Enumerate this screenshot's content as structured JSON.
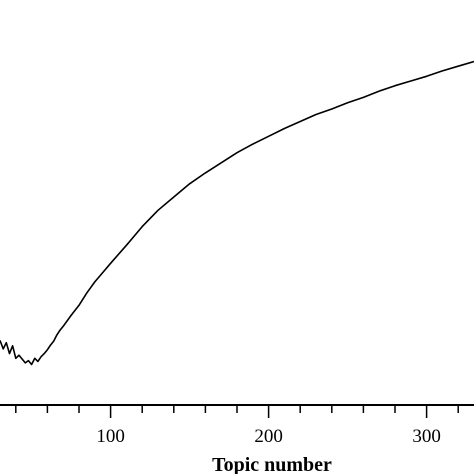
{
  "chart_data": {
    "type": "line",
    "title": "",
    "xlabel": "Topic number",
    "ylabel": "",
    "xlim": [
      30,
      330
    ],
    "x_major_ticks": [
      100,
      200,
      300
    ],
    "x_minor_step": 20,
    "tick_labels": [
      "100",
      "200",
      "300"
    ],
    "grid": false,
    "series": [
      {
        "x": [
          30,
          32,
          34,
          36,
          38,
          40,
          42,
          44,
          46,
          48,
          50,
          52,
          54,
          56,
          58,
          60,
          62,
          64,
          66,
          68,
          70,
          75,
          80,
          85,
          90,
          95,
          100,
          110,
          120,
          130,
          140,
          150,
          160,
          170,
          180,
          190,
          200,
          210,
          220,
          230,
          240,
          250,
          260,
          270,
          280,
          290,
          300,
          310,
          320,
          330
        ],
        "y": [
          0.183,
          0.172,
          0.18,
          0.166,
          0.176,
          0.16,
          0.164,
          0.159,
          0.154,
          0.157,
          0.152,
          0.16,
          0.156,
          0.162,
          0.166,
          0.171,
          0.177,
          0.182,
          0.19,
          0.196,
          0.201,
          0.215,
          0.228,
          0.244,
          0.258,
          0.27,
          0.282,
          0.305,
          0.329,
          0.35,
          0.367,
          0.384,
          0.398,
          0.411,
          0.424,
          0.435,
          0.445,
          0.455,
          0.464,
          0.473,
          0.48,
          0.488,
          0.495,
          0.503,
          0.51,
          0.516,
          0.522,
          0.529,
          0.535,
          0.541
        ]
      }
    ]
  }
}
